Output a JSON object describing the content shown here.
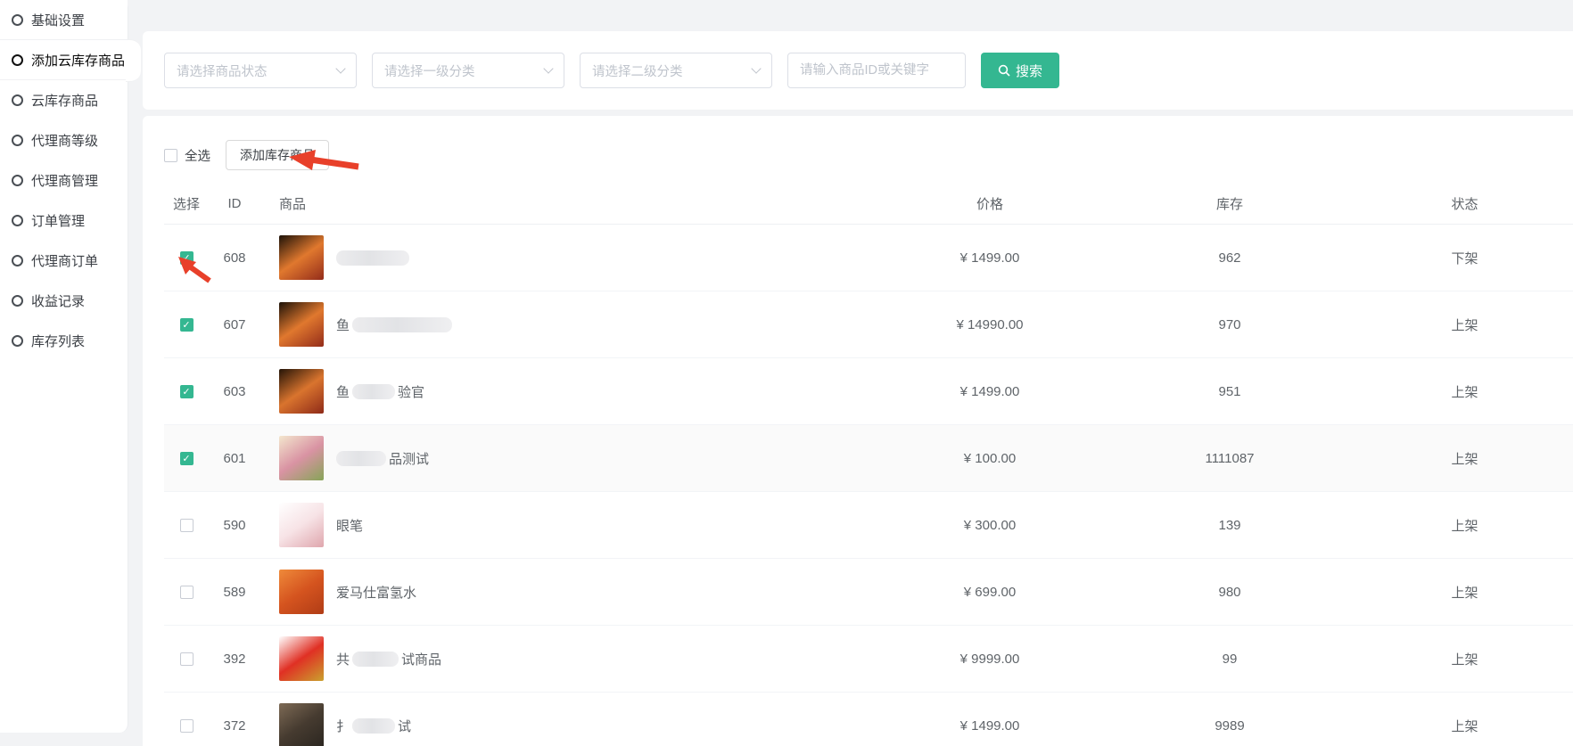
{
  "theme": {
    "accent": "#34b791",
    "arrow_color": "#e8402a",
    "page_bg": "#f2f3f5"
  },
  "sidebar": {
    "items": [
      {
        "key": "basic-settings",
        "label": "基础设置",
        "active": false
      },
      {
        "key": "add-cloud-stock-product",
        "label": "添加云库存商品",
        "active": true
      },
      {
        "key": "cloud-stock-products",
        "label": "云库存商品",
        "active": false
      },
      {
        "key": "agent-levels",
        "label": "代理商等级",
        "active": false
      },
      {
        "key": "agent-management",
        "label": "代理商管理",
        "active": false
      },
      {
        "key": "order-management",
        "label": "订单管理",
        "active": false
      },
      {
        "key": "agent-orders",
        "label": "代理商订单",
        "active": false
      },
      {
        "key": "earnings-records",
        "label": "收益记录",
        "active": false
      },
      {
        "key": "stock-list",
        "label": "库存列表",
        "active": false
      }
    ]
  },
  "filters": {
    "selects": [
      {
        "placeholder": "请选择商品状态"
      },
      {
        "placeholder": "请选择一级分类"
      },
      {
        "placeholder": "请选择二级分类"
      }
    ],
    "keyword": {
      "placeholder": "请输入商品ID或关键字",
      "value": ""
    },
    "search_button": {
      "label": "搜索",
      "icon": "search-icon"
    }
  },
  "toolbar": {
    "select_all_label": "全选",
    "select_all_checked": false,
    "add_button_label": "添加库存商品"
  },
  "table": {
    "columns": [
      "选择",
      "ID",
      "商品",
      "价格",
      "库存",
      "状态"
    ],
    "rows": [
      {
        "id": "608",
        "checked": true,
        "name_parts": [
          {
            "blur": 82
          }
        ],
        "price": "¥ 1499.00",
        "stock": "962",
        "status": "下架",
        "thumb": [
          "#1d1208",
          "#e0782e",
          "#932c1a"
        ],
        "highlight": false
      },
      {
        "id": "607",
        "checked": true,
        "name_parts": [
          {
            "text": "鱼"
          },
          {
            "blur": 112
          }
        ],
        "price": "¥ 14990.00",
        "stock": "970",
        "status": "上架",
        "thumb": [
          "#1d1208",
          "#e0782e",
          "#932c1a"
        ],
        "highlight": false
      },
      {
        "id": "603",
        "checked": true,
        "name_parts": [
          {
            "text": "鱼"
          },
          {
            "blur": 48
          },
          {
            "text": "验官"
          }
        ],
        "price": "¥ 1499.00",
        "stock": "951",
        "status": "上架",
        "thumb": [
          "#241407",
          "#d9742e",
          "#8e2a18"
        ],
        "highlight": false
      },
      {
        "id": "601",
        "checked": true,
        "name_parts": [
          {
            "blur": 56
          },
          {
            "text": "品测试"
          }
        ],
        "price": "¥ 100.00",
        "stock": "1111087",
        "status": "上架",
        "thumb": [
          "#f3e6cd",
          "#d993a3",
          "#86a457"
        ],
        "highlight": true
      },
      {
        "id": "590",
        "checked": false,
        "name_parts": [
          {
            "text": "眼笔"
          }
        ],
        "price": "¥ 300.00",
        "stock": "139",
        "status": "上架",
        "thumb": [
          "#ffffff",
          "#f7e3e6",
          "#dfa6ad"
        ],
        "highlight": false
      },
      {
        "id": "589",
        "checked": false,
        "name_parts": [
          {
            "text": "爱马仕富氢水"
          }
        ],
        "price": "¥ 699.00",
        "stock": "980",
        "status": "上架",
        "thumb": [
          "#ef8a3a",
          "#d5541f",
          "#b03c16"
        ],
        "highlight": false
      },
      {
        "id": "392",
        "checked": false,
        "name_parts": [
          {
            "text": "共"
          },
          {
            "blur": 52
          },
          {
            "text": "试商品"
          }
        ],
        "price": "¥ 9999.00",
        "stock": "99",
        "status": "上架",
        "thumb": [
          "#ffffff",
          "#e03024",
          "#caa12e"
        ],
        "highlight": false
      },
      {
        "id": "372",
        "checked": false,
        "name_parts": [
          {
            "text": "扌"
          },
          {
            "blur": 48
          },
          {
            "text": "试"
          }
        ],
        "price": "¥ 1499.00",
        "stock": "9989",
        "status": "上架",
        "thumb": [
          "#7d6a55",
          "#463b30",
          "#2b2620"
        ],
        "highlight": false
      }
    ]
  },
  "annotations": [
    {
      "id": "arrow-to-add-button",
      "type": "red-arrow",
      "target": "add-stock-product-button"
    },
    {
      "id": "arrow-to-first-checkbox",
      "type": "red-arrow",
      "target": "row-608-checkbox"
    }
  ]
}
